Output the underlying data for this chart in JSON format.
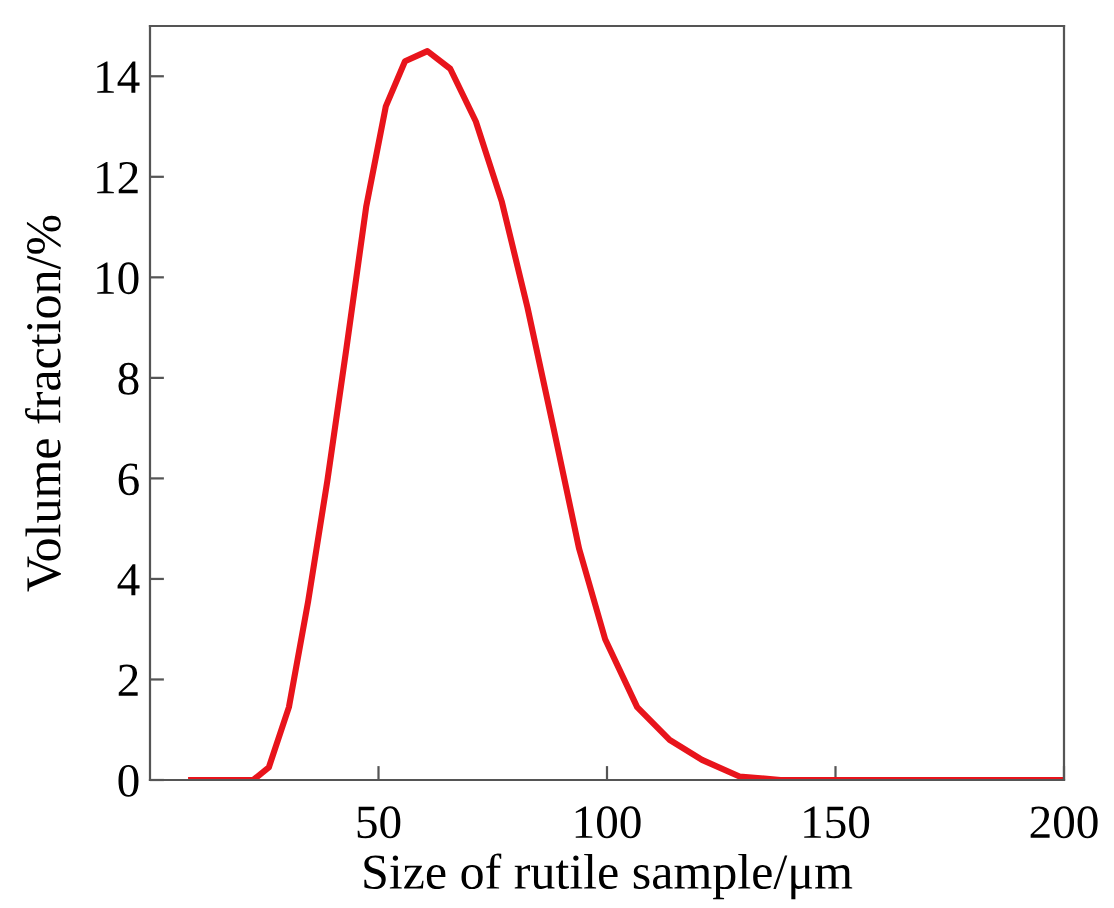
{
  "chart_data": {
    "type": "line",
    "xlabel": "Size of rutile sample/μm",
    "ylabel": "Volume fraction/%",
    "x": [
      9,
      22.6,
      26,
      30.4,
      34.6,
      38.8,
      43,
      47.3,
      51.6,
      55.8,
      60.7,
      65.7,
      71.3,
      77,
      82.6,
      88.3,
      93.9,
      99.6,
      106.6,
      113.7,
      120.8,
      129,
      138,
      150,
      200
    ],
    "series": [
      {
        "color": "#e8141b",
        "values": [
          0,
          0,
          0.25,
          1.45,
          3.55,
          5.95,
          8.6,
          11.4,
          13.4,
          14.3,
          14.5,
          14.15,
          13.1,
          11.5,
          9.4,
          7.0,
          4.6,
          2.8,
          1.45,
          0.8,
          0.4,
          0.07,
          0,
          0,
          0
        ]
      }
    ],
    "xlim": [
      0,
      200
    ],
    "xticks": [
      50,
      100,
      150,
      200
    ],
    "ylim": [
      0,
      15
    ],
    "yticks": [
      0,
      2,
      4,
      6,
      8,
      10,
      12,
      14
    ],
    "grid": false,
    "legend": false,
    "marker": "none",
    "line_style": "solid"
  }
}
